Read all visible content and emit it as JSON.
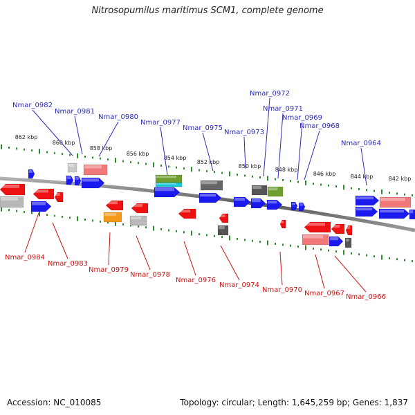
{
  "title": "Nitrosopumilus maritimus SCM1, complete genome",
  "footer": {
    "accession": "Accession: NC_010085",
    "summary": "Topology: circular; Length: 1,645,259 bp; Genes: 1,837"
  },
  "colors": {
    "top_label": "#2b2bb8",
    "bottom_label": "#cc1111",
    "tick": "#2e8b2e",
    "backbone": "#808080"
  },
  "scale": {
    "kbp_labels": [
      "862 kbp",
      "860 kbp",
      "858 kbp",
      "856 kbp",
      "854 kbp",
      "852 kbp",
      "850 kbp",
      "848 kbp",
      "846 kbp",
      "844 kbp",
      "842 kbp"
    ]
  },
  "top_labels": [
    "Nmar_0982",
    "Nmar_0981",
    "Nmar_0980",
    "Nmar_0977",
    "Nmar_0975",
    "Nmar_0973",
    "Nmar_0972",
    "Nmar_0971",
    "Nmar_0969",
    "Nmar_0968",
    "Nmar_0964"
  ],
  "bottom_labels": [
    "Nmar_0984",
    "Nmar_0983",
    "Nmar_0979",
    "Nmar_0978",
    "Nmar_0976",
    "Nmar_0974",
    "Nmar_0970",
    "Nmar_0967",
    "Nmar_0966"
  ]
}
